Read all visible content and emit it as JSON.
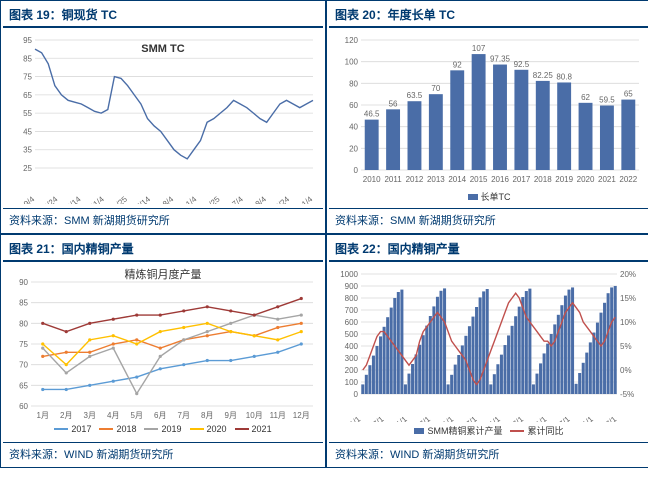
{
  "panel19": {
    "title": "图表 19：铜现货 TC",
    "footer": "资料来源：SMM 新湖期货研究所",
    "type": "line",
    "series_label": "SMM TC",
    "line_color": "#4a6da7",
    "grid_color": "#d9d9d9",
    "background_color": "#ffffff",
    "ylim": [
      25,
      95
    ],
    "ytick_step": 10,
    "x_labels": [
      "2019.9/4",
      "2019.9/24",
      "2019.10/14",
      "2019.11/4",
      "2019.11/25",
      "2020.7/14",
      "2020.8/4",
      "2021.1/4",
      "2021.1/25",
      "2021.7/4",
      "2021.8/4",
      "2021.8/24",
      "2022.1/4"
    ],
    "values": [
      90,
      88,
      82,
      70,
      65,
      62,
      61,
      60,
      58,
      56,
      55,
      57,
      75,
      74,
      70,
      65,
      60,
      52,
      48,
      45,
      40,
      35,
      32,
      30,
      35,
      40,
      50,
      52,
      55,
      58,
      62,
      60,
      58,
      55,
      52,
      50,
      55,
      60,
      62,
      60,
      58,
      60,
      62
    ]
  },
  "panel20": {
    "title": "图表 20：年度长单 TC",
    "footer": "资料来源：SMM 新湖期货研究所",
    "type": "bar",
    "bar_color": "#4a6da7",
    "grid_color": "#d9d9d9",
    "ylim": [
      0,
      120
    ],
    "ytick_step": 20,
    "legend_label": "长单TC",
    "categories": [
      "2010",
      "2011",
      "2012",
      "2013",
      "2014",
      "2015",
      "2016",
      "2017",
      "2018",
      "2019",
      "2020",
      "2021",
      "2022"
    ],
    "values": [
      46.5,
      56,
      63.5,
      70,
      92,
      107,
      97.35,
      92.5,
      82.25,
      80.8,
      62,
      59.5,
      65
    ]
  },
  "panel21": {
    "title": "图表 21：国内精铜产量",
    "footer": "资料来源：WIND 新湖期货研究所",
    "type": "multiline",
    "chart_title": "精炼铜月度产量",
    "grid_color": "#d9d9d9",
    "ylim": [
      60,
      90
    ],
    "ytick_step": 5,
    "x_labels": [
      "1月",
      "2月",
      "3月",
      "4月",
      "5月",
      "6月",
      "7月",
      "8月",
      "9月",
      "10月",
      "11月",
      "12月"
    ],
    "series": [
      {
        "label": "2017",
        "color": "#5b9bd5",
        "values": [
          64,
          64,
          65,
          66,
          67,
          69,
          70,
          71,
          71,
          72,
          73,
          75
        ]
      },
      {
        "label": "2018",
        "color": "#ed7d31",
        "values": [
          72,
          73,
          73,
          75,
          76,
          74,
          76,
          77,
          78,
          77,
          79,
          80
        ]
      },
      {
        "label": "2019",
        "color": "#a5a5a5",
        "values": [
          74,
          68,
          72,
          74,
          63,
          72,
          76,
          78,
          80,
          82,
          81,
          82
        ]
      },
      {
        "label": "2020",
        "color": "#ffc000",
        "values": [
          75,
          70,
          76,
          77,
          75,
          78,
          79,
          80,
          78,
          77,
          76,
          78
        ]
      },
      {
        "label": "2021",
        "color": "#9e3a37",
        "values": [
          80,
          78,
          80,
          81,
          82,
          82,
          83,
          84,
          83,
          82,
          84,
          86
        ]
      }
    ]
  },
  "panel22": {
    "title": "图表 22：国内精铜产量",
    "footer": "资料来源：WIND 新湖期货研究所",
    "type": "combo",
    "bar_color": "#4a6da7",
    "line_color": "#c0504d",
    "grid_color": "#d9d9d9",
    "y1_lim": [
      0,
      1000
    ],
    "y1_tick": 100,
    "y2_lim": [
      -5,
      20
    ],
    "y2_tick": 5,
    "legend_bar": "SMM精铜累计产量",
    "legend_line": "累计同比",
    "x_labels": [
      "2016/1/1",
      "2016/7/1",
      "2017/1/1",
      "2017/7/1",
      "2018/1/1",
      "2018/7/1",
      "2019/1/1",
      "2019/7/1",
      "2020/1/1",
      "2020/7/1",
      "2021/1/1",
      "2021/7/1"
    ],
    "bar_values": [
      80,
      160,
      240,
      320,
      400,
      480,
      560,
      640,
      720,
      800,
      850,
      870,
      80,
      170,
      250,
      330,
      410,
      490,
      570,
      650,
      730,
      810,
      860,
      880,
      80,
      160,
      245,
      325,
      405,
      485,
      565,
      645,
      725,
      805,
      855,
      875,
      80,
      165,
      248,
      328,
      408,
      488,
      568,
      648,
      728,
      808,
      858,
      878,
      80,
      170,
      255,
      338,
      420,
      500,
      580,
      660,
      740,
      820,
      870,
      888,
      85,
      175,
      260,
      345,
      430,
      512,
      595,
      678,
      760,
      840,
      888,
      900
    ],
    "line_values": [
      0,
      1,
      3,
      5,
      7,
      8,
      8,
      7,
      6,
      5,
      4,
      3,
      2,
      1,
      2,
      3,
      6,
      8,
      9,
      10,
      11,
      12,
      11,
      10,
      8,
      6,
      5,
      4,
      3,
      2,
      0,
      -2,
      -3,
      -2,
      0,
      2,
      4,
      6,
      8,
      10,
      12,
      14,
      15,
      16,
      15,
      13,
      11,
      10,
      9,
      8,
      7,
      6,
      6,
      5,
      6,
      8,
      10,
      12,
      13,
      14,
      13,
      12,
      10,
      9,
      8,
      7,
      6,
      5,
      6,
      8,
      10,
      11
    ]
  }
}
